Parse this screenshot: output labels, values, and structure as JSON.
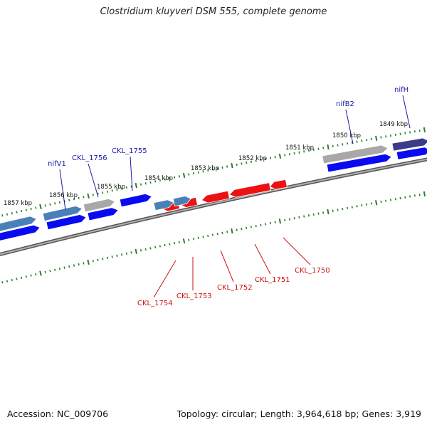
{
  "title": "Clostridium kluyveri DSM 555, complete genome",
  "footer": {
    "accession": "Accession: NC_009706",
    "summary": "Topology: circular; Length: 3,964,618 bp; Genes: 3,919"
  },
  "colors": {
    "backbone": "#7a7a7a",
    "tick": "#2e7d2e",
    "forward_gene": "#0a0af0",
    "forward_gene_other": "#4a80b8",
    "pseudo_gene": "#a8a8a8",
    "nif_gene": "#3b3b8a",
    "reverse_gene": "#ee1111",
    "forward_label": "#1a1aa8",
    "reverse_label": "#cc1111",
    "kbp_label": "#111111"
  },
  "kbp_labels": [
    "1857 kbp",
    "1856 kbp",
    "1855 kbp",
    "1854 kbp",
    "1853 kbp",
    "1852 kbp",
    "1851 kbp",
    "1850 kbp",
    "1849 kbp"
  ],
  "forward_gene_labels": [
    "nifV1",
    "CKL_1756",
    "CKL_1755",
    "nifB2",
    "nifH"
  ],
  "reverse_gene_labels": [
    "CKL_1754",
    "CKL_1753",
    "CKL_1752",
    "CKL_1751",
    "CKL_1750"
  ]
}
